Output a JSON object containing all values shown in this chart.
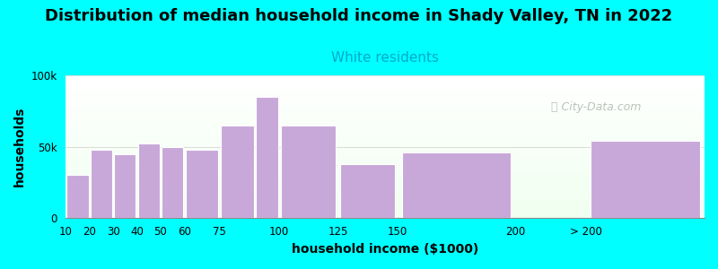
{
  "title": "Distribution of median household income in Shady Valley, TN in 2022",
  "subtitle": "White residents",
  "xlabel": "household income ($1000)",
  "ylabel": "households",
  "background_color": "#00FFFF",
  "bar_color": "#C8A8D8",
  "bar_edge_color": "#ffffff",
  "bar_left_edges": [
    10,
    20,
    30,
    40,
    50,
    60,
    75,
    90,
    100,
    125,
    150,
    230
  ],
  "bar_widths": [
    10,
    10,
    10,
    10,
    10,
    15,
    15,
    10,
    25,
    25,
    50,
    50
  ],
  "values": [
    30000,
    48000,
    45000,
    52000,
    50000,
    48000,
    65000,
    85000,
    65000,
    38000,
    46000,
    54000
  ],
  "xtick_positions": [
    10,
    20,
    30,
    40,
    50,
    60,
    75,
    100,
    125,
    150,
    200,
    230
  ],
  "xtick_labels": [
    "10",
    "20",
    "30",
    "40",
    "50",
    "60",
    "75",
    "100",
    "125",
    "150",
    "200",
    "> 200"
  ],
  "ylim": [
    0,
    100000
  ],
  "yticks": [
    0,
    50000,
    100000
  ],
  "ytick_labels": [
    "0",
    "50k",
    "100k"
  ],
  "title_fontsize": 13,
  "subtitle_fontsize": 11,
  "subtitle_color": "#00AACC",
  "axis_label_fontsize": 10,
  "tick_fontsize": 8.5,
  "watermark_text": "City-Data.com",
  "watermark_color": "#B0B8B0",
  "xlim": [
    10,
    280
  ]
}
